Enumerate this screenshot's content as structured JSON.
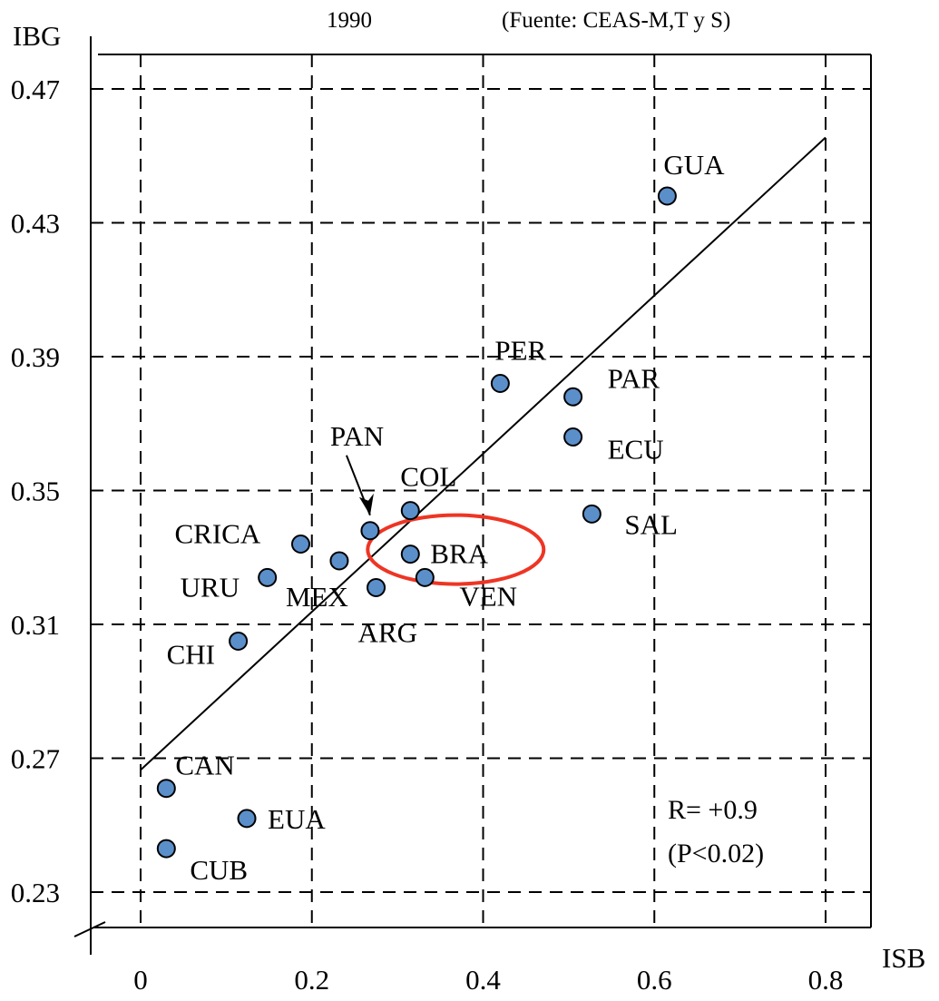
{
  "header": {
    "year": "1990",
    "source": "(Fuente: CEAS-M,T y S)"
  },
  "chart_data": {
    "type": "scatter",
    "xlabel": "ISB",
    "ylabel": "IBG",
    "xlim": [
      -0.06,
      0.82
    ],
    "ylim": [
      0.227,
      0.483
    ],
    "x_ticks": [
      "0",
      "0.2",
      "0.4",
      "0.6",
      "0.8"
    ],
    "x_tick_values": [
      0,
      0.2,
      0.4,
      0.6,
      0.8
    ],
    "y_ticks": [
      "0.47",
      "0.43",
      "0.39",
      "0.35",
      "0.31",
      "0.27",
      "0.23"
    ],
    "y_tick_values": [
      0.47,
      0.43,
      0.39,
      0.35,
      0.31,
      0.27,
      0.23
    ],
    "grid": true,
    "grid_style": "dashed",
    "axis_break": true,
    "points": [
      {
        "label": "GUA",
        "x": 0.615,
        "y": 0.438
      },
      {
        "label": "PER",
        "x": 0.42,
        "y": 0.382
      },
      {
        "label": "PAR",
        "x": 0.505,
        "y": 0.378
      },
      {
        "label": "ECU",
        "x": 0.505,
        "y": 0.366
      },
      {
        "label": "SAL",
        "x": 0.527,
        "y": 0.343
      },
      {
        "label": "COL",
        "x": 0.315,
        "y": 0.344
      },
      {
        "label": "PAN",
        "x": 0.268,
        "y": 0.338
      },
      {
        "label": "CRICA",
        "x": 0.187,
        "y": 0.334
      },
      {
        "label": "BRA",
        "x": 0.315,
        "y": 0.331
      },
      {
        "label": "MEX",
        "x": 0.232,
        "y": 0.329
      },
      {
        "label": "VEN",
        "x": 0.332,
        "y": 0.324
      },
      {
        "label": "ARG",
        "x": 0.275,
        "y": 0.321
      },
      {
        "label": "URU",
        "x": 0.148,
        "y": 0.324
      },
      {
        "label": "CHI",
        "x": 0.114,
        "y": 0.305
      },
      {
        "label": "CAN",
        "x": 0.03,
        "y": 0.261
      },
      {
        "label": "EUA",
        "x": 0.124,
        "y": 0.252
      },
      {
        "label": "CUB",
        "x": 0.03,
        "y": 0.243
      }
    ],
    "point_color": "#5b8fca",
    "trend_line": {
      "x": [
        0.0,
        0.8
      ],
      "y": [
        0.2665,
        0.4555
      ]
    },
    "highlight": {
      "label": "BRA",
      "color": "#ee3524"
    },
    "annotation_arrow_to": "PAN",
    "stats": {
      "r": "R= +0.9",
      "p": "(P<0.02)"
    }
  }
}
